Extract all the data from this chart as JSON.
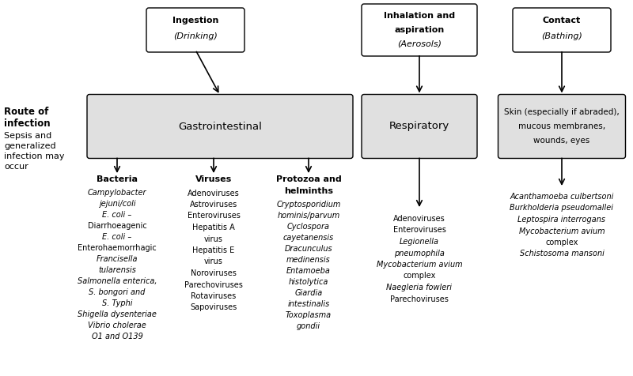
{
  "bg_color": "#ffffff",
  "box_fill": "#e0e0e0",
  "box_edge": "#000000",
  "fontsize": 7.0,
  "header_fontsize": 8.0,
  "mid_fontsize": 9.5,
  "col_bacteria": {
    "lines": [
      {
        "text": "Campylobacter",
        "italic": true
      },
      {
        "text": "jejuni/coli",
        "italic": true
      },
      {
        "text": "E. coli –",
        "italic": true
      },
      {
        "text": "Diarrhoeagenic",
        "italic": false
      },
      {
        "text": "E. coli –",
        "italic": true
      },
      {
        "text": "Enterohaemorrhagic",
        "italic": false
      },
      {
        "text": "Francisella",
        "italic": true
      },
      {
        "text": "tularensis",
        "italic": true
      },
      {
        "text": "Salmonella enterica,",
        "italic": true
      },
      {
        "text": "S. bongori and",
        "italic": true
      },
      {
        "text": "S. Typhi",
        "italic": true
      },
      {
        "text": "Shigella dysenteriae",
        "italic": true
      },
      {
        "text": "Vibrio cholerae",
        "italic": true
      },
      {
        "text": "O1 and O139",
        "italic": true
      }
    ]
  },
  "col_viruses": {
    "lines": [
      {
        "text": "Adenoviruses",
        "italic": false
      },
      {
        "text": "Astroviruses",
        "italic": false
      },
      {
        "text": "Enteroviruses",
        "italic": false
      },
      {
        "text": "Hepatitis A",
        "italic": false
      },
      {
        "text": "virus",
        "italic": false
      },
      {
        "text": "Hepatitis E",
        "italic": false
      },
      {
        "text": "virus",
        "italic": false
      },
      {
        "text": "Noroviruses",
        "italic": false
      },
      {
        "text": "Parechoviruses",
        "italic": false
      },
      {
        "text": "Rotaviruses",
        "italic": false
      },
      {
        "text": "Sapoviruses",
        "italic": false
      }
    ]
  },
  "col_protozoa": {
    "lines": [
      {
        "text": "Cryptosporidium",
        "italic": true
      },
      {
        "text": "hominis/parvum",
        "italic": true
      },
      {
        "text": "Cyclospora",
        "italic": true
      },
      {
        "text": "cayetanensis",
        "italic": true
      },
      {
        "text": "Dracunculus",
        "italic": true
      },
      {
        "text": "medinensis",
        "italic": true
      },
      {
        "text": "Entamoeba",
        "italic": true
      },
      {
        "text": "histolytica",
        "italic": true
      },
      {
        "text": "Giardia",
        "italic": true
      },
      {
        "text": "intestinalis",
        "italic": true
      },
      {
        "text": "Toxoplasma",
        "italic": true
      },
      {
        "text": "gondii",
        "italic": true
      }
    ]
  },
  "col_respiratory": {
    "lines": [
      {
        "text": "Adenoviruses",
        "italic": false
      },
      {
        "text": "Enteroviruses",
        "italic": false
      },
      {
        "text": "Legionella",
        "italic": true
      },
      {
        "text": "pneumophila",
        "italic": true
      },
      {
        "text": "Mycobacterium avium",
        "italic": true
      },
      {
        "text": "complex",
        "italic": false
      },
      {
        "text": "Naegleria fowleri",
        "italic": true
      },
      {
        "text": "Parechoviruses",
        "italic": false
      }
    ]
  },
  "col_contact": {
    "lines": [
      {
        "text": "Acanthamoeba culbertsoni",
        "italic": true
      },
      {
        "text": "Burkholderia pseudomallei",
        "italic": true
      },
      {
        "text": "Leptospira interrogans",
        "italic": true
      },
      {
        "text": "Mycobacterium avium",
        "italic": true
      },
      {
        "text": "complex",
        "italic": false
      },
      {
        "text": "Schistosoma mansoni",
        "italic": true
      }
    ]
  }
}
